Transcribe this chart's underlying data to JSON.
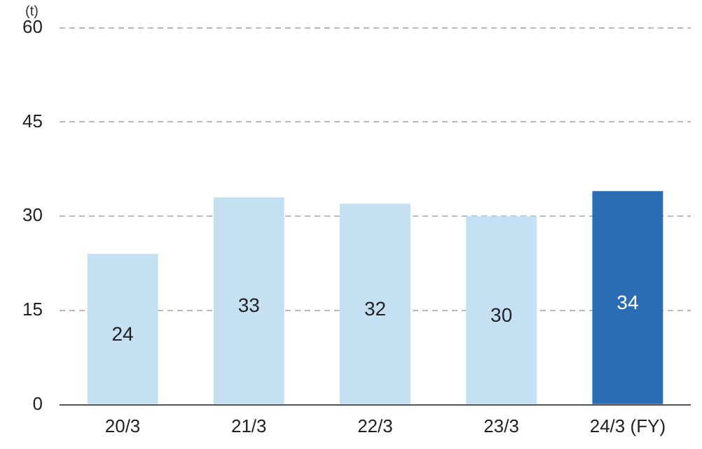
{
  "chart_data": {
    "type": "bar",
    "ylabel": "(t)",
    "categories": [
      "20/3",
      "21/3",
      "22/3",
      "23/3",
      "24/3 (FY)"
    ],
    "values": [
      24,
      33,
      32,
      30,
      34
    ],
    "colors": [
      "#c5dff3",
      "#c5dff3",
      "#c5dff3",
      "#c5dff3",
      "#2a6db5"
    ],
    "ylim": [
      0,
      60
    ],
    "yticks": [
      0,
      15,
      30,
      45,
      60
    ],
    "grid": "y",
    "data_labels": true,
    "legend": false
  }
}
